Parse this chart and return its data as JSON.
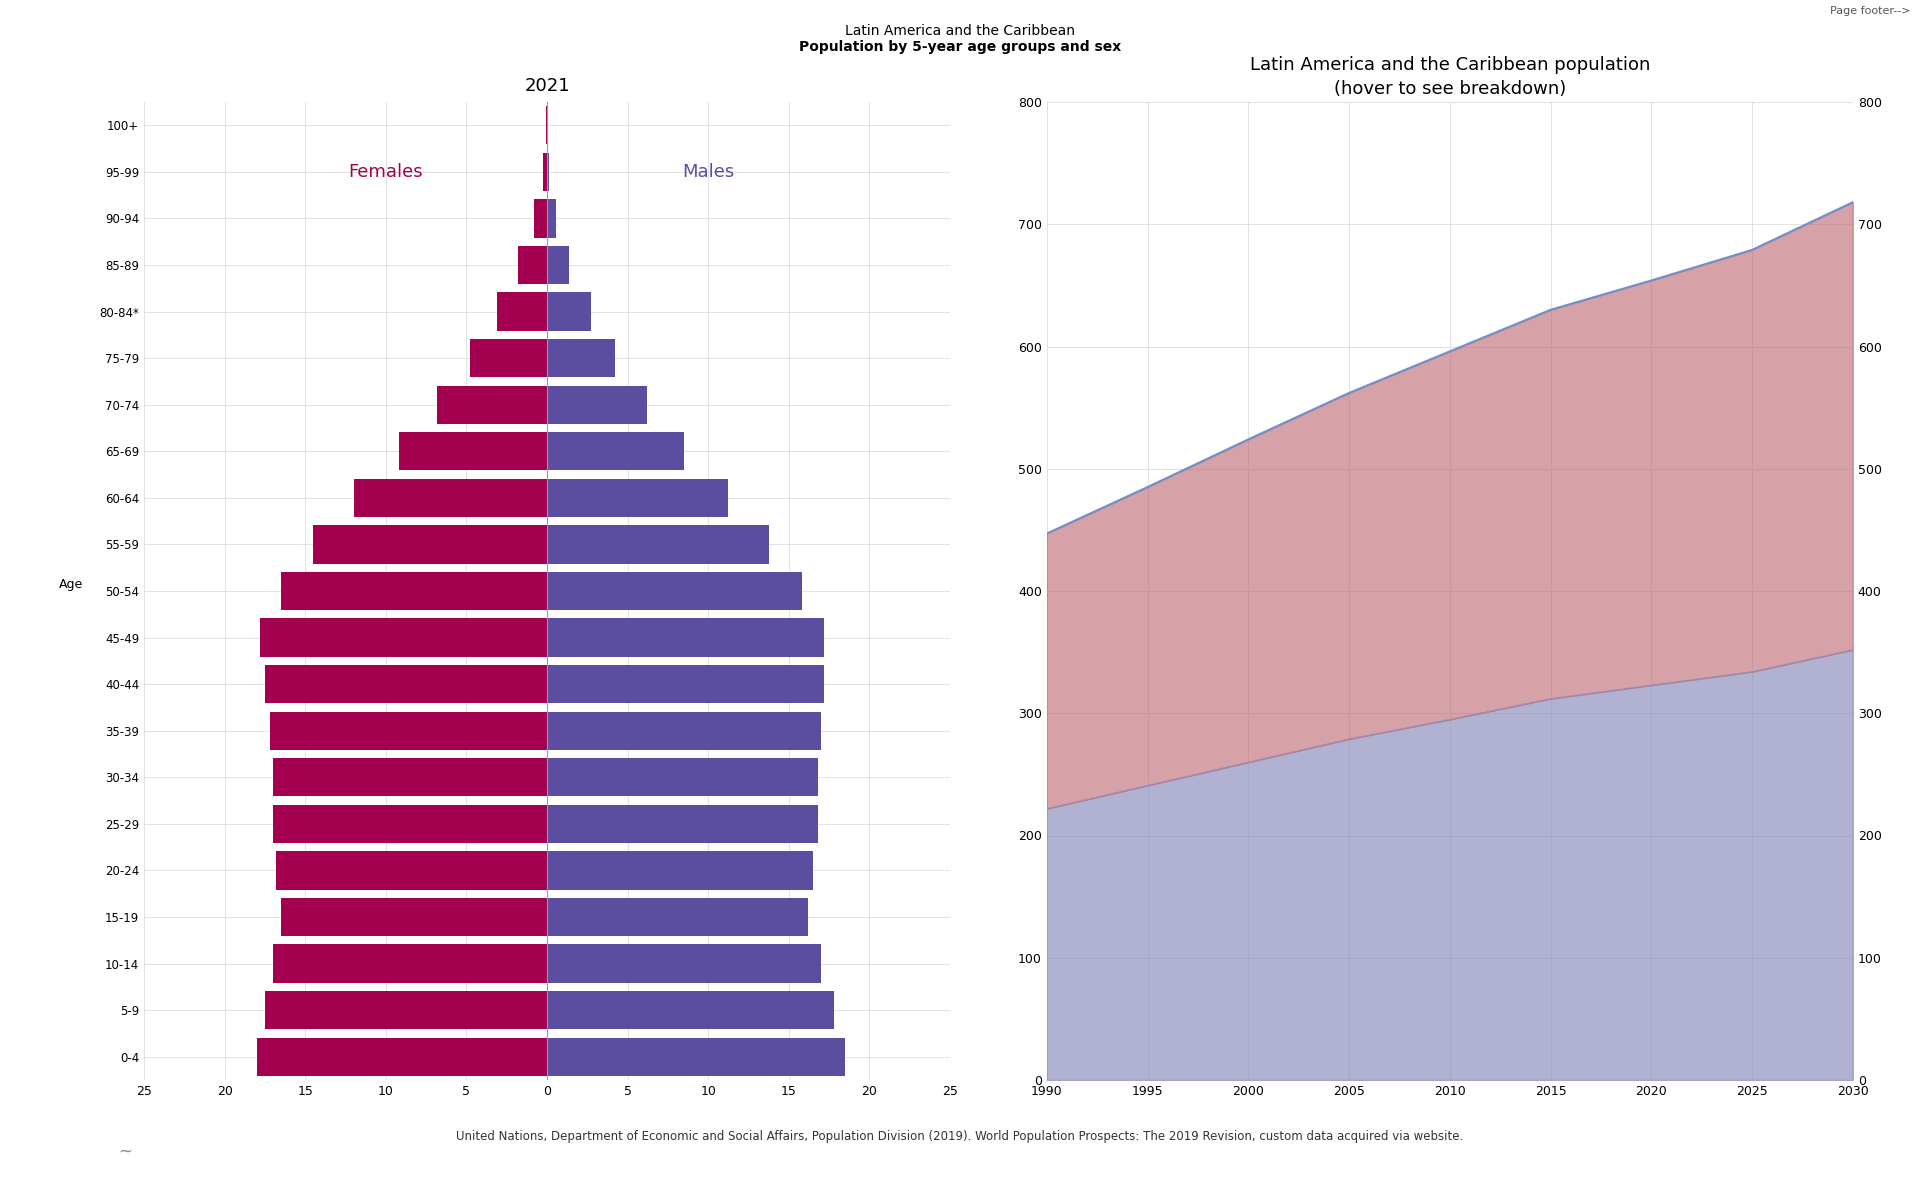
{
  "title_top_normal": "Latin America and the Caribbean",
  "title_top_bold": "Population by 5-year age groups and sex",
  "pyramid_title": "2021",
  "timeseries_title": "Latin America and the Caribbean population",
  "timeseries_subtitle": "(hover to see breakdown)",
  "page_footer": "Page footer-->",
  "age_groups": [
    "100+",
    "95-99",
    "90-94",
    "85-89",
    "80-84*",
    "75-79",
    "70-74",
    "65-69",
    "60-64",
    "55-59",
    "50-54",
    "45-49",
    "40-44",
    "35-39",
    "30-34",
    "25-29",
    "20-24",
    "15-19",
    "10-14",
    "5-9",
    "0-4"
  ],
  "females": [
    0.08,
    0.25,
    0.8,
    1.8,
    3.1,
    4.8,
    6.8,
    9.2,
    12.0,
    14.5,
    16.5,
    17.8,
    17.5,
    17.2,
    17.0,
    17.0,
    16.8,
    16.5,
    17.0,
    17.5,
    18.0
  ],
  "males": [
    0.04,
    0.15,
    0.55,
    1.35,
    2.7,
    4.2,
    6.2,
    8.5,
    11.2,
    13.8,
    15.8,
    17.2,
    17.2,
    17.0,
    16.8,
    16.8,
    16.5,
    16.2,
    17.0,
    17.8,
    18.5
  ],
  "female_color": "#A3004F",
  "male_color": "#5B4EA0",
  "females_label": "Females",
  "males_label": "Males",
  "pyramid_xlim": 25,
  "pyramid_xticks": [
    0,
    5,
    10,
    15,
    20,
    25
  ],
  "years": [
    1990,
    1995,
    2000,
    2005,
    2010,
    2015,
    2020,
    2025,
    2030
  ],
  "total_population": [
    447,
    485,
    524,
    562,
    596,
    630,
    654,
    679,
    718
  ],
  "female_population": [
    225,
    244,
    264,
    283,
    301,
    318,
    331,
    345,
    366
  ],
  "ts_female_color": "#C0707A",
  "ts_male_color": "#8888BB",
  "ts_total_line_color": "#7090C8",
  "ts_mid_line_color": "#8898C8",
  "ts_ylim": [
    0,
    800
  ],
  "ts_yticks": [
    0,
    100,
    200,
    300,
    400,
    500,
    600,
    700,
    800
  ],
  "citation_normal": "United Nations, Department of Economic and Social Affairs, Population Division (2019). ",
  "citation_italic": "World Population Prospects: The 2019 Revision",
  "citation_end": ", custom data acquired via website.",
  "bg_color": "#FFFFFF",
  "grid_color": "#DDDDDD",
  "font_size_axis": 9,
  "font_size_title": 13,
  "font_size_header": 10
}
